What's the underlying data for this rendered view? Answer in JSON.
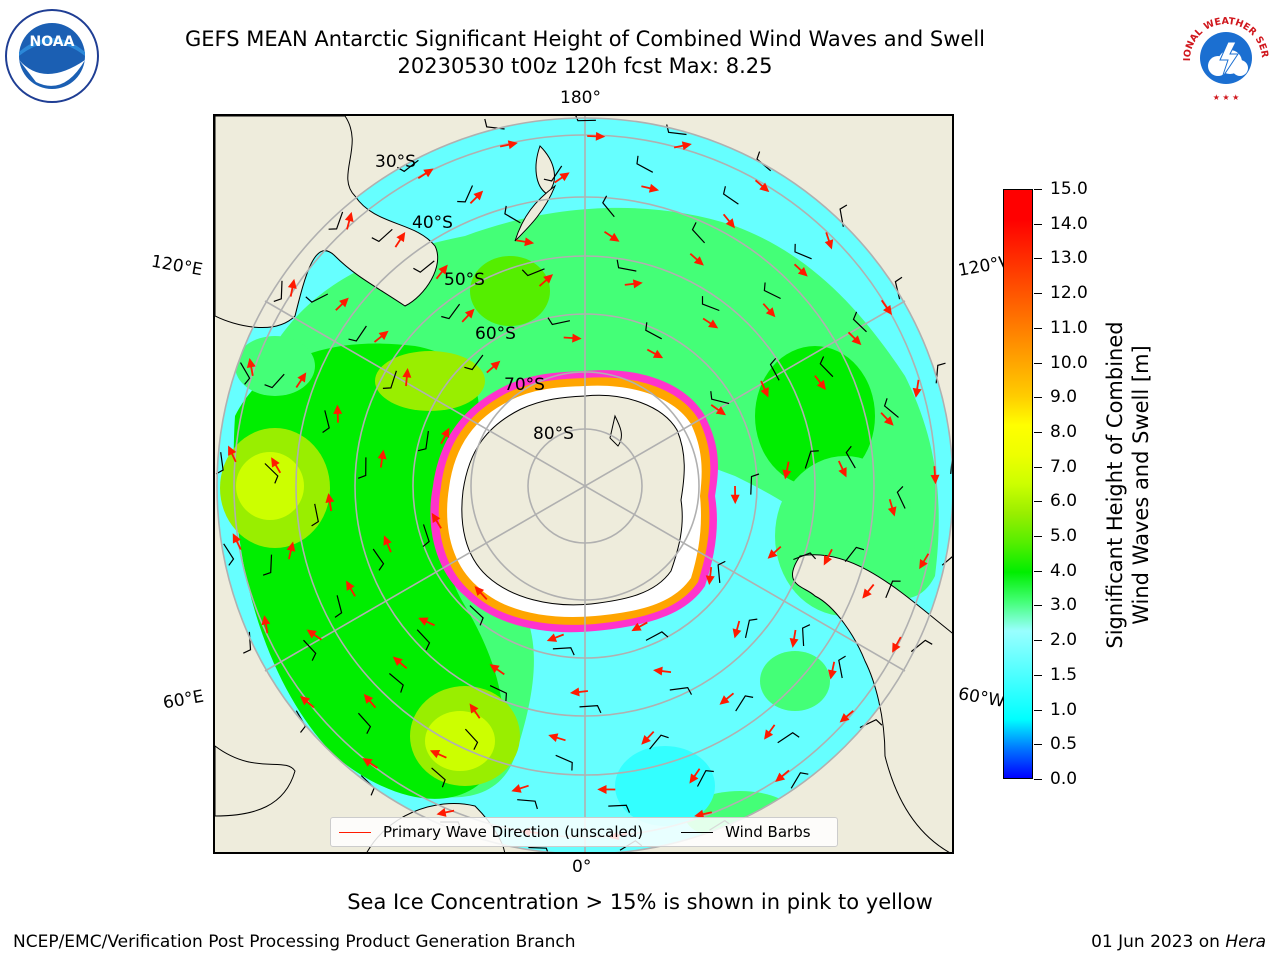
{
  "title_line1": "GEFS MEAN Antarctic Significant Height of Combined Wind Waves and Swell",
  "title_line2": "20230530 t00z 120h fcst   Max: 8.25",
  "logos": {
    "left": "NOAA",
    "right": "NATIONAL WEATHER SERVICE"
  },
  "longitude_labels": {
    "top": "180°",
    "bottom": "0°",
    "upper_left": "120°E",
    "lower_left": "60°E",
    "upper_right": "120°W",
    "lower_right": "60°W"
  },
  "latitude_labels": [
    "30°S",
    "40°S",
    "50°S",
    "60°S",
    "70°S",
    "80°S"
  ],
  "legend": {
    "wave_direction": "Primary Wave Direction (unscaled)",
    "wind_barbs": "Wind Barbs"
  },
  "colors": {
    "land": "#eeecdc",
    "arrows": "#ff1a00",
    "sea_ice": [
      "#ff33cc",
      "#ffa500",
      "#ffff66"
    ],
    "colorbar": [
      "#0000ff",
      "#0077ff",
      "#00ffff",
      "#33ffff",
      "#66ffff",
      "#99ffff",
      "#44ff77",
      "#00ee00",
      "#55ee00",
      "#99ee00",
      "#ccff00",
      "#eeff00",
      "#ffff00",
      "#ffcc00",
      "#ffaa00",
      "#ff8800",
      "#ff6600",
      "#ff4400",
      "#ff2200",
      "#ff0000"
    ]
  },
  "colorbar": {
    "title_line1": "Significant Height of Combined",
    "title_line2": "Wind Waves and Swell [m]",
    "ticks": [
      "0.0",
      "0.5",
      "1.0",
      "1.5",
      "2.0",
      "3.0",
      "4.0",
      "5.0",
      "6.0",
      "7.0",
      "8.0",
      "9.0",
      "10.0",
      "11.0",
      "12.0",
      "13.0",
      "14.0",
      "15.0"
    ]
  },
  "sea_ice_note": "Sea Ice Concentration > 15% is shown in pink to yellow",
  "footer_left": "NCEP/EMC/Verification Post Processing Product Generation Branch",
  "footer_date": "01 Jun 2023 on",
  "footer_host": "Hera"
}
